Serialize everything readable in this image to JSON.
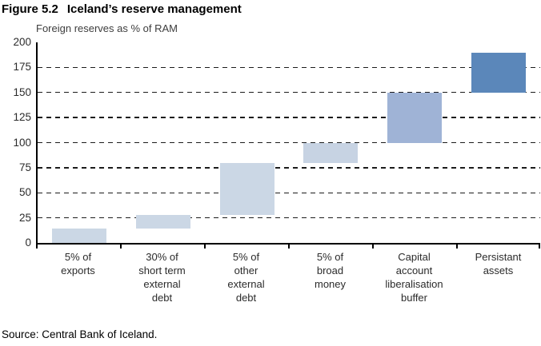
{
  "figure": {
    "label": "Figure 5.2",
    "title": "Iceland’s reserve management"
  },
  "subtitle": "Foreign reserves as % of RAM",
  "source": "Source: Central Bank of Iceland.",
  "chart_data": {
    "type": "bar",
    "subtype": "floating-waterfall",
    "title": "Iceland’s reserve management",
    "ylabel": "Foreign reserves as % of RAM",
    "xlabel": "",
    "ylim": [
      0,
      200
    ],
    "yticks": [
      0,
      25,
      50,
      75,
      100,
      125,
      150,
      175,
      200
    ],
    "grid": "horizontal-dashed",
    "legend": "none",
    "categories": [
      "5% of\nexports",
      "30% of\nshort term\nexternal\ndebt",
      "5% of\nother\nexternal\ndebt",
      "5% of\nbroad\nmoney",
      "Capital\naccount\nliberalisation\nbuffer",
      "Persistant\nassets"
    ],
    "bars": [
      {
        "label": "5% of exports",
        "start": 0,
        "end": 14,
        "color": "#cbd7e5"
      },
      {
        "label": "30% of short term external debt",
        "start": 14,
        "end": 28,
        "color": "#cbd7e5"
      },
      {
        "label": "5% of other external debt",
        "start": 28,
        "end": 80,
        "color": "#cbd7e5"
      },
      {
        "label": "5% of broad money",
        "start": 80,
        "end": 100,
        "color": "#c7d3e3"
      },
      {
        "label": "Capital account liberalisation buffer",
        "start": 100,
        "end": 150,
        "color": "#9fb3d6"
      },
      {
        "label": "Persistant assets",
        "start": 150,
        "end": 190,
        "color": "#5b87ba"
      }
    ],
    "colors": {
      "metric_component": "#cbd7e5",
      "buffer": "#9fb3d6",
      "persistent_assets": "#5b87ba"
    }
  }
}
